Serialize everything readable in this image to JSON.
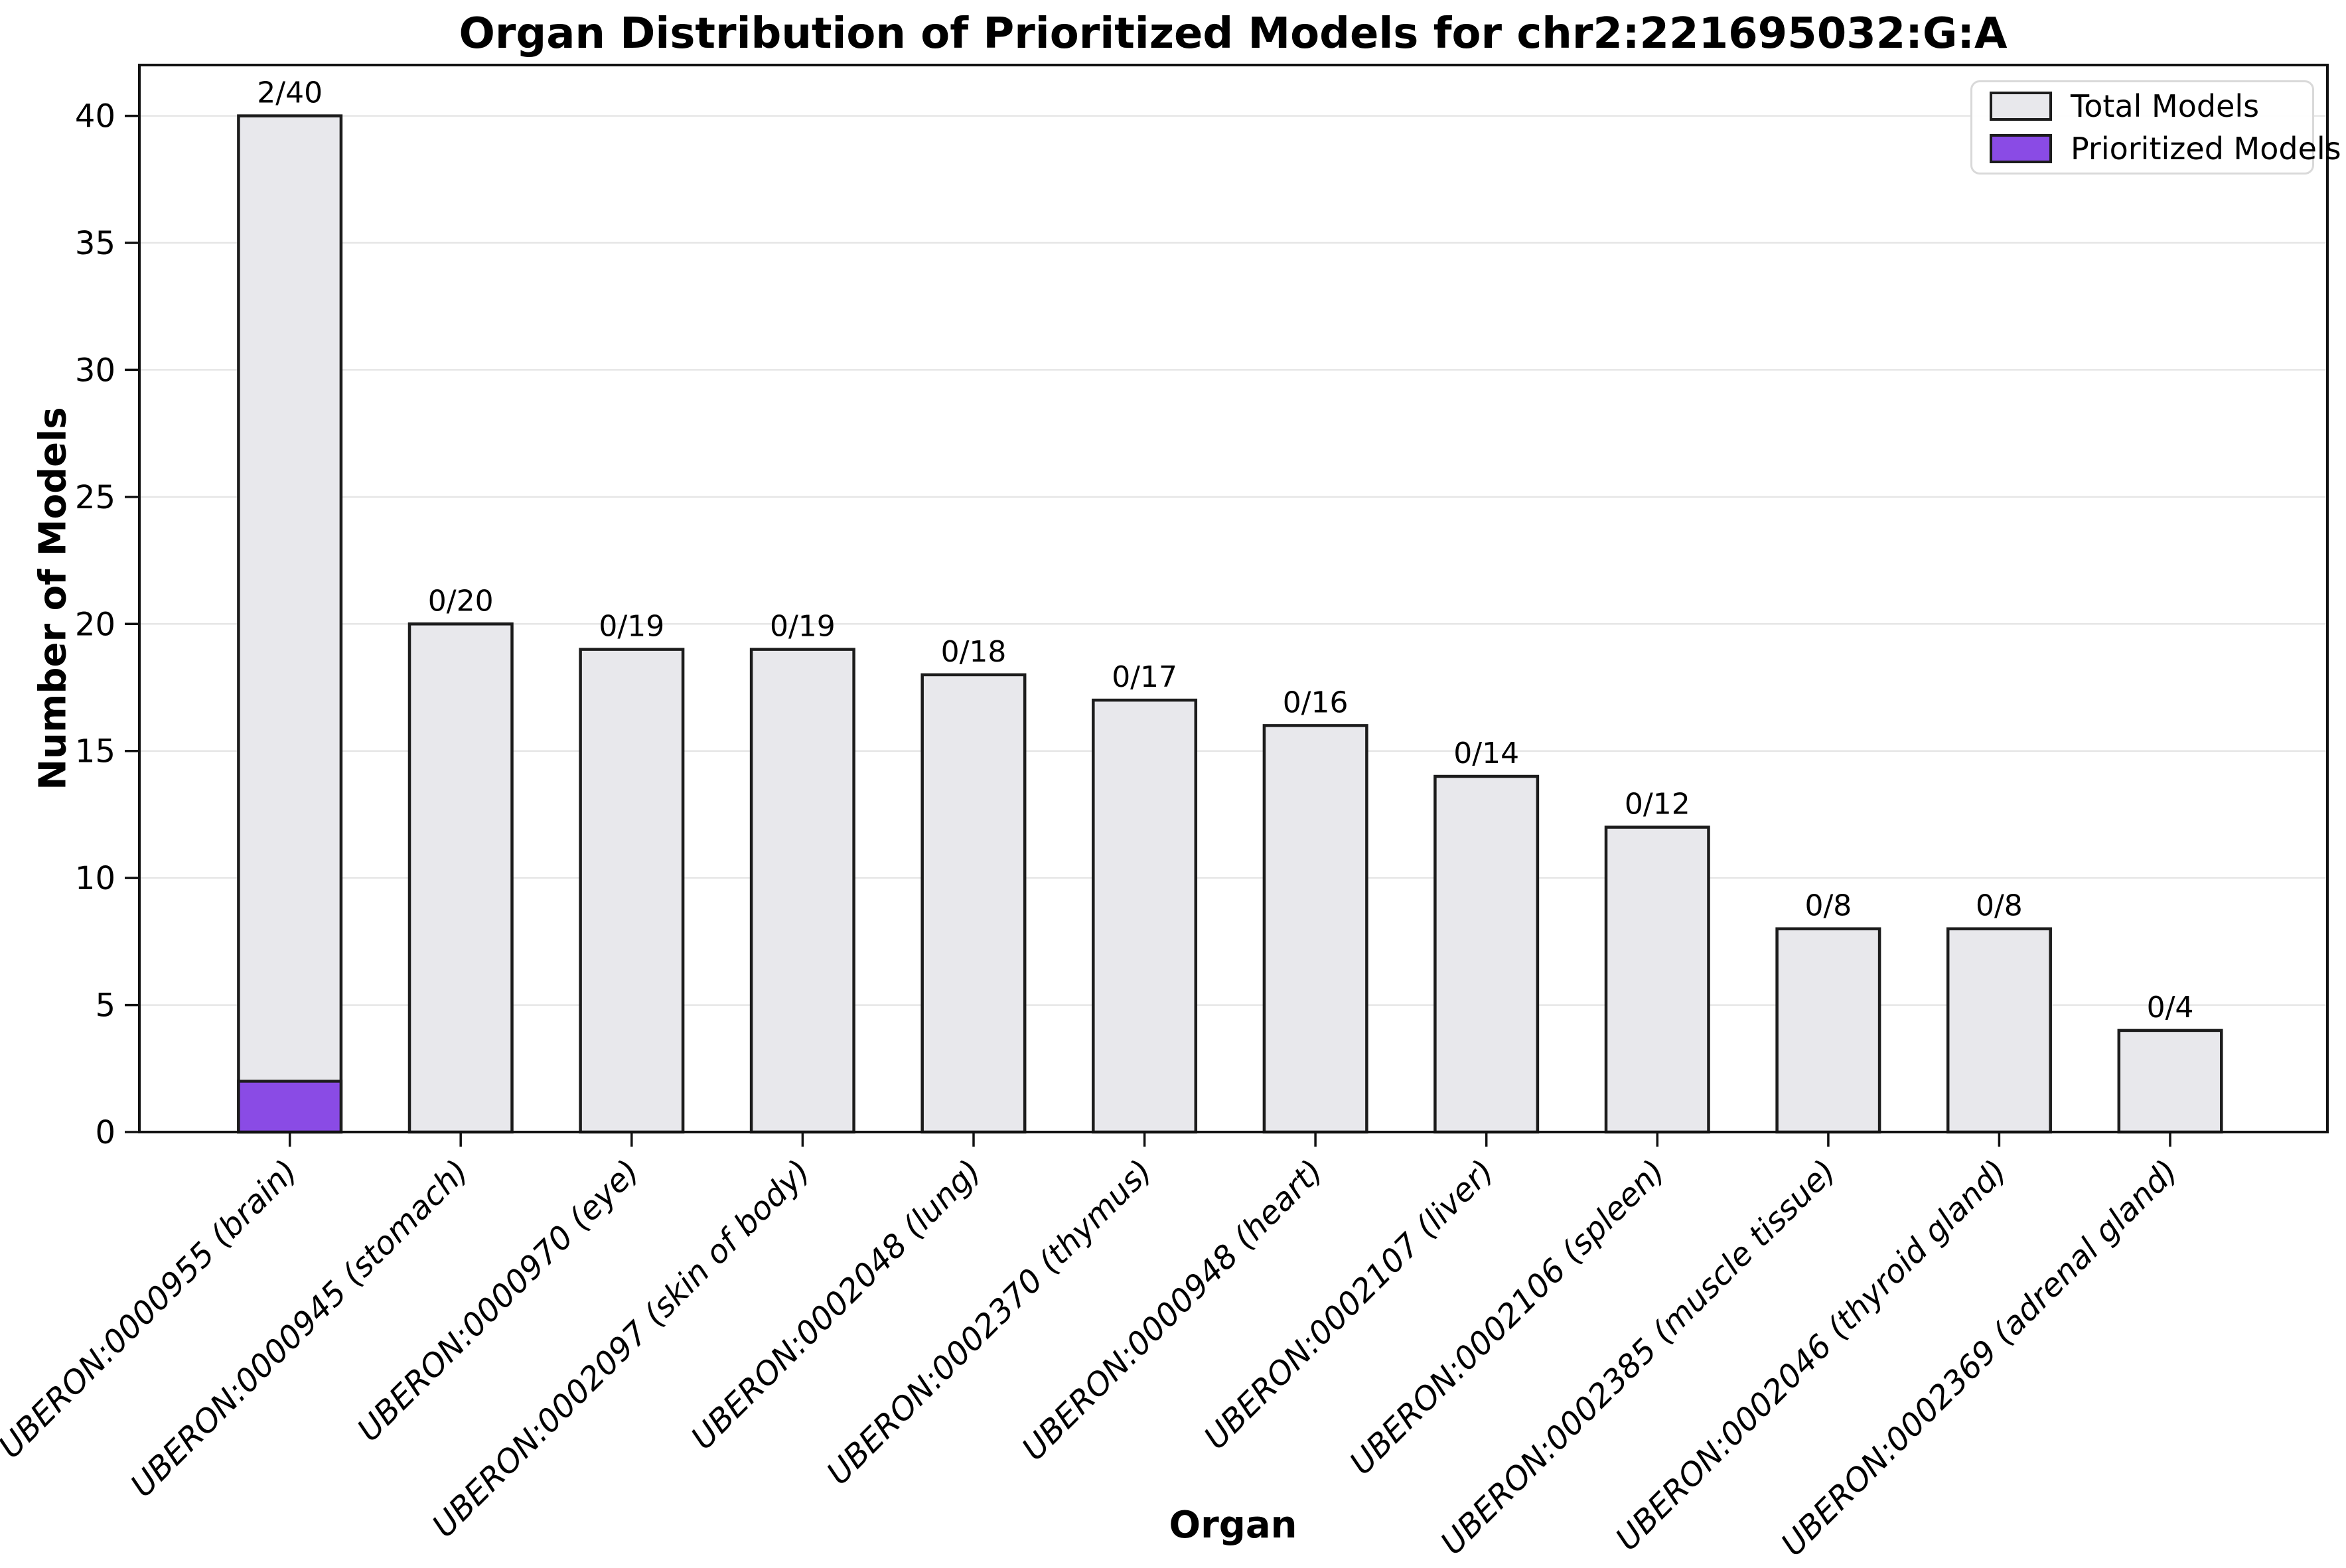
{
  "chart_data": {
    "type": "bar",
    "title": "Organ Distribution of Prioritized Models for chr2:221695032:G:A",
    "xlabel": "Organ",
    "ylabel": "Number of Models",
    "ylim": [
      0,
      42
    ],
    "yticks": [
      0,
      5,
      10,
      15,
      20,
      25,
      30,
      35,
      40
    ],
    "grid": "horizontal",
    "legend_position": "upper right",
    "categories": [
      "UBERON:0000955 (brain)",
      "UBERON:0000945 (stomach)",
      "UBERON:0000970 (eye)",
      "UBERON:0002097 (skin of body)",
      "UBERON:0002048 (lung)",
      "UBERON:0002370 (thymus)",
      "UBERON:0000948 (heart)",
      "UBERON:0002107 (liver)",
      "UBERON:0002106 (spleen)",
      "UBERON:0002385 (muscle tissue)",
      "UBERON:0002046 (thyroid gland)",
      "UBERON:0002369 (adrenal gland)"
    ],
    "series": [
      {
        "name": "Total Models",
        "values": [
          40,
          20,
          19,
          19,
          18,
          17,
          16,
          14,
          12,
          8,
          8,
          4
        ]
      },
      {
        "name": "Prioritized Models",
        "values": [
          2,
          0,
          0,
          0,
          0,
          0,
          0,
          0,
          0,
          0,
          0,
          0
        ]
      }
    ],
    "bar_labels": [
      "2/40",
      "0/20",
      "0/19",
      "0/19",
      "0/18",
      "0/17",
      "0/16",
      "0/14",
      "0/12",
      "0/8",
      "0/8",
      "0/4"
    ],
    "legend": [
      {
        "label": "Total Models",
        "swatch": "total"
      },
      {
        "label": "Prioritized Models",
        "swatch": "prioritized"
      }
    ],
    "colors": {
      "total": "#E8E8EC",
      "prioritized": "#8A4BE5",
      "edge": "#1C1C1C",
      "spine": "#111111",
      "grid": "#E6E6E6"
    }
  }
}
